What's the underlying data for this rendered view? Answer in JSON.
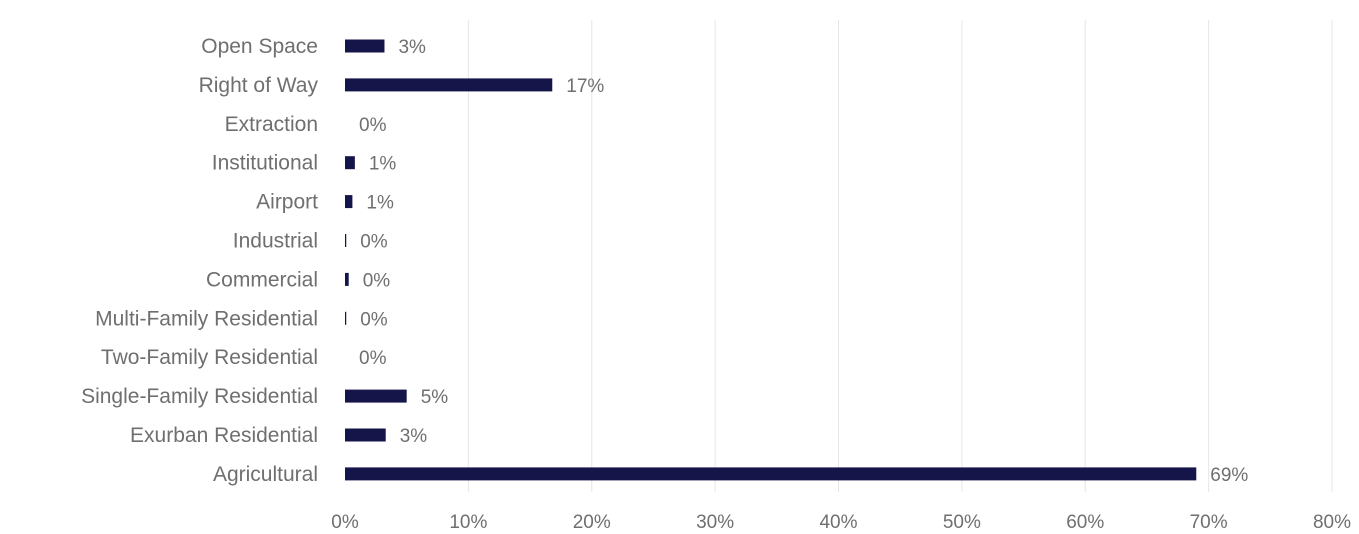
{
  "chart_data": {
    "type": "bar",
    "orientation": "horizontal",
    "categories": [
      "Open Space",
      "Right of Way",
      "Extraction",
      "Institutional",
      "Airport",
      "Industrial",
      "Commercial",
      "Multi-Family Residential",
      "Two-Family Residential",
      "Single-Family Residential",
      "Exurban Residential",
      "Agricultural"
    ],
    "values": [
      3.2,
      16.8,
      0.0,
      0.8,
      0.6,
      0.1,
      0.3,
      0.1,
      0.0,
      5.0,
      3.3,
      69.0
    ],
    "value_labels": [
      "3%",
      "17%",
      "0%",
      "1%",
      "1%",
      "0%",
      "0%",
      "0%",
      "0%",
      "5%",
      "3%",
      "69%"
    ],
    "xlim": [
      0,
      80
    ],
    "x_ticks": [
      0,
      10,
      20,
      30,
      40,
      50,
      60,
      70,
      80
    ],
    "x_tick_labels": [
      "0%",
      "10%",
      "20%",
      "30%",
      "40%",
      "50%",
      "60%",
      "70%",
      "80%"
    ],
    "grid": "vertical",
    "bar_color": "#16154a",
    "legend": "none",
    "title": "",
    "xlabel": "",
    "ylabel": ""
  }
}
